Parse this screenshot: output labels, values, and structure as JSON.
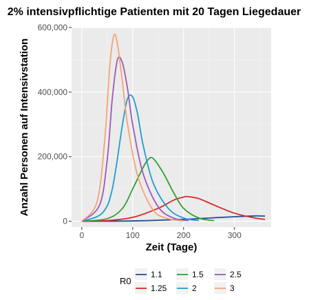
{
  "chart_data": {
    "type": "line",
    "title": "2% intensivpflichtige Patienten mit 20 Tagen Liegedauer",
    "xlabel": "Zeit (Tage)",
    "ylabel": "Anzahl Personen auf Intensivstation",
    "xlim": [
      -20,
      372
    ],
    "ylim": [
      -18000,
      600000
    ],
    "xticks": [
      0,
      100,
      200,
      300
    ],
    "yticks": [
      0,
      200000,
      400000,
      600000
    ],
    "ytick_labels": [
      "0",
      "200,000",
      "400,000",
      "600,000"
    ],
    "grid": true,
    "legend": {
      "title": "R0",
      "position": "bottom"
    },
    "series": [
      {
        "name": "1.1",
        "color": "#1f4e9c",
        "x": [
          0,
          100,
          200,
          250,
          300,
          340,
          360
        ],
        "y": [
          0,
          1000,
          6000,
          10000,
          14000,
          16500,
          16000
        ]
      },
      {
        "name": "1.25",
        "color": "#d62728",
        "x": [
          0,
          50,
          100,
          150,
          180,
          200,
          210,
          230,
          260,
          300,
          340,
          360
        ],
        "y": [
          0,
          2000,
          12000,
          40000,
          65000,
          75000,
          76000,
          70000,
          50000,
          25000,
          10000,
          6000
        ]
      },
      {
        "name": "1.5",
        "color": "#2ca02c",
        "x": [
          0,
          50,
          80,
          100,
          120,
          130,
          140,
          160,
          180,
          200,
          230,
          260
        ],
        "y": [
          0,
          8000,
          40000,
          100000,
          165000,
          190000,
          195000,
          150000,
          90000,
          40000,
          10000,
          2000
        ]
      },
      {
        "name": "2",
        "color": "#1f9bd2",
        "x": [
          0,
          40,
          60,
          80,
          90,
          100,
          110,
          120,
          140,
          170,
          200,
          230
        ],
        "y": [
          0,
          25000,
          100000,
          300000,
          380000,
          385000,
          330000,
          240000,
          120000,
          40000,
          10000,
          2000
        ]
      },
      {
        "name": "2.5",
        "color": "#9b59b6",
        "x": [
          0,
          35,
          50,
          60,
          70,
          80,
          90,
          100,
          120,
          150,
          180,
          210
        ],
        "y": [
          0,
          50000,
          190000,
          380000,
          500000,
          490000,
          410000,
          300000,
          150000,
          45000,
          10000,
          2000
        ]
      },
      {
        "name": "3",
        "color": "#f5a374",
        "x": [
          0,
          30,
          45,
          55,
          63,
          70,
          80,
          90,
          110,
          140,
          170,
          200
        ],
        "y": [
          0,
          60000,
          250000,
          480000,
          575000,
          550000,
          430000,
          300000,
          140000,
          35000,
          8000,
          1000
        ]
      }
    ]
  }
}
